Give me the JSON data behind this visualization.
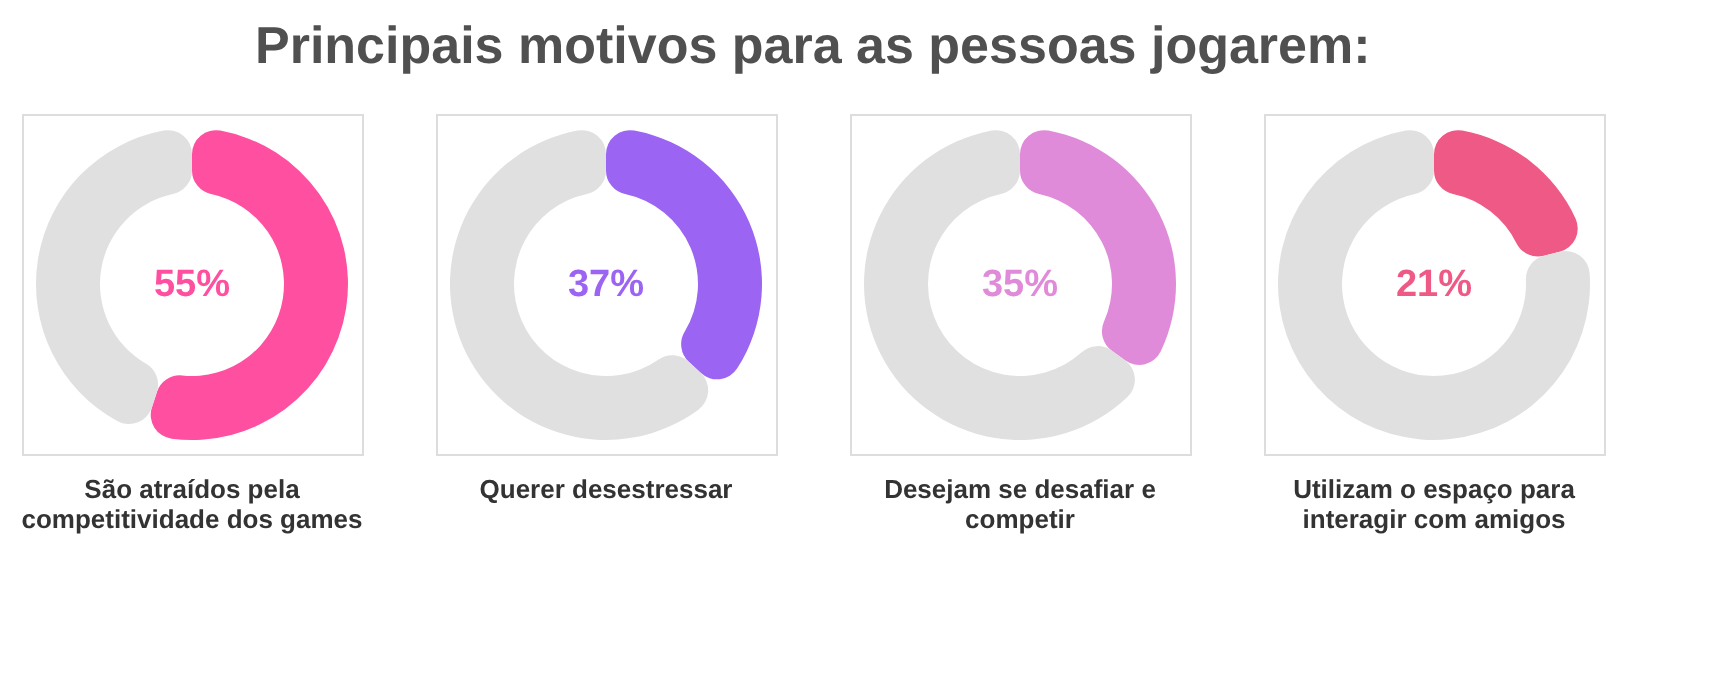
{
  "chart_data": [
    {
      "type": "donut",
      "title": "Principais motivos para as pessoas jogarem:",
      "xlabel": "São atraídos pela competitividade dos games",
      "categories": [
        null,
        null
      ],
      "values": [
        55,
        45
      ],
      "colors": [
        "#ff4fa0",
        "#e0e0e0"
      ],
      "annotations": [
        "55%"
      ]
    },
    {
      "type": "donut",
      "xlabel": "Querer desestressar",
      "categories": [
        null,
        null
      ],
      "values": [
        37,
        63
      ],
      "colors": [
        "#9c64f2",
        "#e0e0e0"
      ],
      "annotations": [
        "37%"
      ]
    },
    {
      "type": "donut",
      "xlabel": "Desejam se desafiar e competir",
      "categories": [
        null,
        null
      ],
      "values": [
        35,
        65
      ],
      "colors": [
        "#e08bd9",
        "#e0e0e0"
      ],
      "annotations": [
        "35%"
      ]
    },
    {
      "type": "donut",
      "xlabel": "Utilizam o espaço para interagir com amigos",
      "categories": [
        null,
        null
      ],
      "values": [
        21,
        79
      ],
      "colors": [
        "#ee5a85",
        "#e0e0e0"
      ],
      "annotations": [
        "21%"
      ]
    }
  ]
}
